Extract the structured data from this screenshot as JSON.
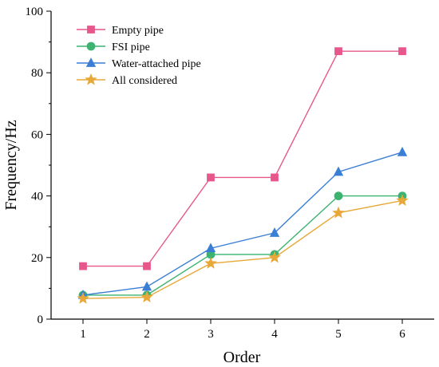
{
  "chart_data": {
    "type": "line",
    "title": "",
    "xlabel": "Order",
    "ylabel": "Frequency/Hz",
    "x": [
      1,
      2,
      3,
      4,
      5,
      6
    ],
    "xlim": [
      0.5,
      6.5
    ],
    "ylim": [
      0,
      100
    ],
    "yticks": [
      0,
      20,
      40,
      60,
      80,
      100
    ],
    "grid": false,
    "legend_position": "top-left",
    "series": [
      {
        "name": "Empty pipe",
        "color": "#e8578c",
        "marker": "square",
        "values": [
          17.2,
          17.2,
          46,
          46,
          87,
          87
        ]
      },
      {
        "name": "FSI pipe",
        "color": "#3cb371",
        "marker": "circle",
        "values": [
          7.8,
          7.8,
          21,
          21,
          40,
          40
        ]
      },
      {
        "name": "Water-attached pipe",
        "color": "#3a7fd5",
        "marker": "triangle",
        "values": [
          7.8,
          10.5,
          23,
          28,
          47.8,
          54.2
        ]
      },
      {
        "name": "All considered",
        "color": "#e8a838",
        "marker": "star",
        "values": [
          6.7,
          7.1,
          18.1,
          20,
          34.5,
          38.5
        ]
      }
    ]
  }
}
